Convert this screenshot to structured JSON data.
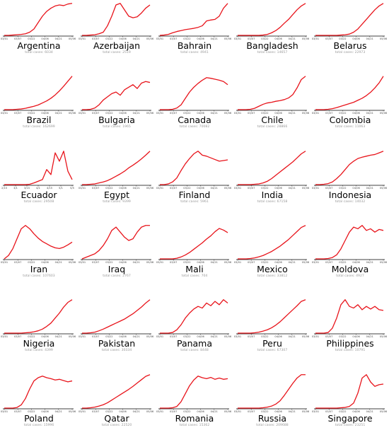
{
  "chart_data": [
    {
      "type": "line",
      "title": "Argentina",
      "subtitle": "total cases: 6034",
      "x_ticks": [
        "03/01",
        "03/07",
        "03/22",
        "04/06",
        "04/21",
        "05/06"
      ],
      "color": "#e8141b",
      "values": [
        0,
        0,
        0.01,
        0.02,
        0.03,
        0.05,
        0.1,
        0.2,
        0.4,
        0.6,
        0.75,
        0.85,
        0.92,
        0.95,
        0.93,
        0.98,
        1.0
      ],
      "ylim_frac": [
        0,
        1.15
      ]
    },
    {
      "type": "line",
      "title": "Azerbaijan",
      "subtitle": "total cases: 2519",
      "x_ticks": [
        "03/01",
        "03/07",
        "03/22",
        "04/06",
        "04/21",
        "05/06"
      ],
      "color": "#e8141b",
      "values": [
        0,
        0,
        0.01,
        0.02,
        0.05,
        0.1,
        0.3,
        0.6,
        0.95,
        1.0,
        0.8,
        0.6,
        0.55,
        0.58,
        0.7,
        0.85,
        0.95
      ],
      "ylim_frac": [
        0,
        1.15
      ]
    },
    {
      "type": "line",
      "title": "Bahrain",
      "subtitle": "total cases: 4941",
      "x_ticks": [
        "03/01",
        "03/07",
        "03/22",
        "04/06",
        "04/21",
        "05/06"
      ],
      "color": "#e8141b",
      "values": [
        0,
        0.01,
        0.03,
        0.08,
        0.12,
        0.15,
        0.18,
        0.2,
        0.22,
        0.25,
        0.3,
        0.45,
        0.48,
        0.5,
        0.6,
        0.85,
        1.0
      ],
      "ylim_frac": [
        0,
        1.15
      ]
    },
    {
      "type": "line",
      "title": "Bangladesh",
      "subtitle": "total cases: 14657",
      "x_ticks": [
        "03/01",
        "03/07",
        "03/22",
        "04/06",
        "04/21",
        "05/06"
      ],
      "color": "#e8141b",
      "values": [
        0,
        0,
        0,
        0,
        0,
        0,
        0.01,
        0.03,
        0.08,
        0.15,
        0.25,
        0.38,
        0.5,
        0.65,
        0.8,
        0.92,
        1.0
      ],
      "ylim_frac": [
        0,
        1.15
      ]
    },
    {
      "type": "line",
      "title": "Belarus",
      "subtitle": "total cases: 22973",
      "x_ticks": [
        "03/01",
        "03/07",
        "03/22",
        "04/06",
        "04/21",
        "05/06"
      ],
      "color": "#e8141b",
      "values": [
        0,
        0,
        0,
        0,
        0,
        0,
        0.01,
        0.02,
        0.04,
        0.1,
        0.2,
        0.35,
        0.5,
        0.65,
        0.8,
        0.92,
        1.0
      ],
      "ylim_frac": [
        0,
        1.15
      ]
    },
    {
      "type": "line",
      "title": "Brazil",
      "subtitle": "total cases: 162699",
      "x_ticks": [
        "03/01",
        "03/07",
        "03/22",
        "04/06",
        "04/21",
        "05/06"
      ],
      "color": "#e8141b",
      "values": [
        0,
        0,
        0,
        0.01,
        0.02,
        0.04,
        0.07,
        0.1,
        0.14,
        0.2,
        0.26,
        0.34,
        0.44,
        0.56,
        0.7,
        0.85,
        1.0
      ],
      "ylim_frac": [
        0,
        1.1
      ]
    },
    {
      "type": "line",
      "title": "Bulgaria",
      "subtitle": "total cases: 1965",
      "x_ticks": [
        "03/01",
        "03/07",
        "03/22",
        "04/06",
        "04/21",
        "05/06"
      ],
      "color": "#e8141b",
      "values": [
        0,
        0,
        0.01,
        0.05,
        0.15,
        0.3,
        0.4,
        0.5,
        0.55,
        0.45,
        0.62,
        0.7,
        0.78,
        0.66,
        0.83,
        0.88,
        0.85
      ],
      "ylim_frac": [
        0,
        1.15
      ]
    },
    {
      "type": "line",
      "title": "Canada",
      "subtitle": "total cases: 70082",
      "x_ticks": [
        "03/01",
        "03/07",
        "03/22",
        "04/06",
        "04/21",
        "05/06"
      ],
      "color": "#e8141b",
      "values": [
        0,
        0,
        0,
        0.01,
        0.05,
        0.15,
        0.35,
        0.55,
        0.7,
        0.82,
        0.92,
        1.0,
        0.98,
        0.95,
        0.92,
        0.88,
        0.78
      ],
      "ylim_frac": [
        0,
        1.15
      ]
    },
    {
      "type": "line",
      "title": "Chile",
      "subtitle": "total cases: 28866",
      "x_ticks": [
        "03/01",
        "03/07",
        "03/22",
        "04/06",
        "04/21",
        "05/06"
      ],
      "color": "#e8141b",
      "values": [
        0,
        0,
        0,
        0.01,
        0.04,
        0.1,
        0.16,
        0.2,
        0.22,
        0.25,
        0.27,
        0.3,
        0.35,
        0.45,
        0.65,
        0.9,
        1.0
      ],
      "ylim_frac": [
        0,
        1.1
      ]
    },
    {
      "type": "line",
      "title": "Colombia",
      "subtitle": "total cases: 11063",
      "x_ticks": [
        "03/01",
        "03/07",
        "03/22",
        "04/06",
        "04/21",
        "05/06"
      ],
      "color": "#e8141b",
      "values": [
        0,
        0,
        0,
        0.01,
        0.03,
        0.06,
        0.1,
        0.14,
        0.18,
        0.22,
        0.28,
        0.34,
        0.42,
        0.52,
        0.65,
        0.8,
        1.0
      ],
      "ylim_frac": [
        0,
        1.1
      ]
    },
    {
      "type": "line",
      "title": "Ecuador",
      "subtitle": "total cases: 29508",
      "x_ticks": [
        "2/15",
        "3/1",
        "3/15",
        "4/1",
        "4/15",
        "5/1",
        "5/5"
      ],
      "color": "#e8141b",
      "values": [
        0,
        0,
        0,
        0,
        0,
        0,
        0.01,
        0.05,
        0.1,
        0.15,
        0.45,
        0.3,
        0.95,
        0.7,
        1.0,
        0.4,
        0.15
      ],
      "ylim_frac": [
        0,
        1.1
      ]
    },
    {
      "type": "line",
      "title": "Egypt",
      "subtitle": "total cases: 9399",
      "x_ticks": [
        "03/01",
        "03/07",
        "03/22",
        "04/06",
        "04/21",
        "05/06"
      ],
      "color": "#e8141b",
      "values": [
        0,
        0,
        0.01,
        0.02,
        0.05,
        0.08,
        0.12,
        0.18,
        0.25,
        0.32,
        0.4,
        0.5,
        0.58,
        0.67,
        0.77,
        0.88,
        1.0
      ],
      "ylim_frac": [
        0,
        1.1
      ]
    },
    {
      "type": "line",
      "title": "Finland",
      "subtitle": "total cases: 5961",
      "x_ticks": [
        "03/01",
        "03/07",
        "03/22",
        "04/06",
        "04/21",
        "05/06"
      ],
      "color": "#e8141b",
      "values": [
        0,
        0,
        0.02,
        0.08,
        0.2,
        0.42,
        0.62,
        0.78,
        0.92,
        1.0,
        0.88,
        0.85,
        0.8,
        0.75,
        0.7,
        0.72,
        0.74
      ],
      "ylim_frac": [
        0,
        1.1
      ]
    },
    {
      "type": "line",
      "title": "India",
      "subtitle": "total cases: 67158",
      "x_ticks": [
        "03/01",
        "03/07",
        "03/22",
        "04/06",
        "04/21",
        "05/06"
      ],
      "color": "#e8141b",
      "values": [
        0,
        0,
        0,
        0,
        0.01,
        0.02,
        0.05,
        0.1,
        0.18,
        0.28,
        0.38,
        0.48,
        0.58,
        0.68,
        0.8,
        0.92,
        1.0
      ],
      "ylim_frac": [
        0,
        1.1
      ]
    },
    {
      "type": "line",
      "title": "Indonesia",
      "subtitle": "total cases: 14032",
      "x_ticks": [
        "03/01",
        "03/07",
        "03/22",
        "04/06",
        "04/21",
        "05/06"
      ],
      "color": "#e8141b",
      "values": [
        0,
        0,
        0.01,
        0.03,
        0.08,
        0.18,
        0.3,
        0.45,
        0.6,
        0.7,
        0.78,
        0.82,
        0.85,
        0.88,
        0.9,
        0.95,
        1.0
      ],
      "ylim_frac": [
        0,
        1.1
      ]
    },
    {
      "type": "line",
      "title": "Iran",
      "subtitle": "total cases: 107603",
      "x_ticks": [
        "03/01",
        "03/07",
        "03/22",
        "04/06",
        "04/21",
        "05/06"
      ],
      "color": "#e8141b",
      "values": [
        0,
        0.1,
        0.3,
        0.6,
        0.9,
        1.0,
        0.9,
        0.75,
        0.62,
        0.52,
        0.45,
        0.38,
        0.33,
        0.31,
        0.35,
        0.42,
        0.5
      ],
      "ylim_frac": [
        0,
        1.1
      ]
    },
    {
      "type": "line",
      "title": "Iraq",
      "subtitle": "total cases: 2767",
      "x_ticks": [
        "03/01",
        "03/07",
        "03/22",
        "04/06",
        "04/21",
        "05/06"
      ],
      "color": "#e8141b",
      "values": [
        0,
        0.05,
        0.1,
        0.15,
        0.25,
        0.4,
        0.6,
        0.85,
        0.95,
        0.8,
        0.65,
        0.55,
        0.6,
        0.8,
        0.95,
        1.0,
        1.0
      ],
      "ylim_frac": [
        0,
        1.1
      ]
    },
    {
      "type": "line",
      "title": "Mali",
      "subtitle": "total cases: 704",
      "x_ticks": [
        "03/01",
        "03/07",
        "03/22",
        "04/06",
        "04/21",
        "05/06"
      ],
      "color": "#e8141b",
      "values": [
        0,
        0,
        0,
        0,
        0.02,
        0.06,
        0.12,
        0.2,
        0.3,
        0.4,
        0.5,
        0.62,
        0.72,
        0.85,
        0.95,
        0.9,
        0.82
      ],
      "ylim_frac": [
        0,
        1.15
      ]
    },
    {
      "type": "line",
      "title": "Mexico",
      "subtitle": "total cases: 33812",
      "x_ticks": [
        "03/01",
        "03/07",
        "03/22",
        "04/06",
        "04/21",
        "05/06"
      ],
      "color": "#e8141b",
      "values": [
        0,
        0,
        0,
        0.01,
        0.03,
        0.06,
        0.1,
        0.16,
        0.22,
        0.3,
        0.38,
        0.48,
        0.58,
        0.7,
        0.82,
        0.94,
        1.0
      ],
      "ylim_frac": [
        0,
        1.1
      ]
    },
    {
      "type": "line",
      "title": "Moldova",
      "subtitle": "total cases: 4927",
      "x_ticks": [
        "03/01",
        "03/07",
        "03/22",
        "04/06",
        "04/21",
        "05/06"
      ],
      "color": "#e8141b",
      "values": [
        0,
        0,
        0,
        0.01,
        0.04,
        0.12,
        0.3,
        0.55,
        0.8,
        0.95,
        0.9,
        1.0,
        0.85,
        0.9,
        0.8,
        0.88,
        0.85
      ],
      "ylim_frac": [
        0,
        1.1
      ]
    },
    {
      "type": "line",
      "title": "Nigeria",
      "subtitle": "total cases: 4399",
      "x_ticks": [
        "03/01",
        "03/07",
        "03/22",
        "04/06",
        "04/21",
        "05/06"
      ],
      "color": "#e8141b",
      "values": [
        0,
        0,
        0,
        0,
        0,
        0.01,
        0.02,
        0.04,
        0.07,
        0.12,
        0.2,
        0.3,
        0.45,
        0.6,
        0.78,
        0.92,
        1.0
      ],
      "ylim_frac": [
        0,
        1.1
      ]
    },
    {
      "type": "line",
      "title": "Pakistan",
      "subtitle": "total cases: 30334",
      "x_ticks": [
        "03/01",
        "03/07",
        "03/22",
        "04/06",
        "04/21",
        "05/06"
      ],
      "color": "#e8141b",
      "values": [
        0,
        0,
        0.01,
        0.03,
        0.07,
        0.12,
        0.18,
        0.24,
        0.3,
        0.36,
        0.42,
        0.5,
        0.58,
        0.68,
        0.78,
        0.9,
        1.0
      ],
      "ylim_frac": [
        0,
        1.1
      ]
    },
    {
      "type": "line",
      "title": "Panama",
      "subtitle": "total cases: 8448",
      "x_ticks": [
        "03/01",
        "03/07",
        "03/22",
        "04/06",
        "04/21",
        "05/06"
      ],
      "color": "#e8141b",
      "values": [
        0,
        0,
        0,
        0.02,
        0.1,
        0.25,
        0.45,
        0.6,
        0.72,
        0.8,
        0.75,
        0.9,
        0.82,
        0.95,
        0.85,
        1.0,
        0.9
      ],
      "ylim_frac": [
        0,
        1.1
      ]
    },
    {
      "type": "line",
      "title": "Peru",
      "subtitle": "total cases: 67307",
      "x_ticks": [
        "03/01",
        "03/07",
        "03/22",
        "04/06",
        "04/21",
        "05/06"
      ],
      "color": "#e8141b",
      "values": [
        0,
        0,
        0,
        0,
        0.01,
        0.03,
        0.06,
        0.1,
        0.16,
        0.24,
        0.34,
        0.46,
        0.58,
        0.7,
        0.82,
        0.95,
        1.0
      ],
      "ylim_frac": [
        0,
        1.1
      ]
    },
    {
      "type": "line",
      "title": "Philippines",
      "subtitle": "total cases: 10791",
      "x_ticks": [
        "03/01",
        "03/07",
        "03/22",
        "04/06",
        "04/21",
        "05/06"
      ],
      "color": "#e8141b",
      "values": [
        0,
        0,
        0,
        0.02,
        0.15,
        0.45,
        0.85,
        1.0,
        0.8,
        0.75,
        0.85,
        0.7,
        0.8,
        0.72,
        0.8,
        0.7,
        0.68
      ],
      "ylim_frac": [
        0,
        1.1
      ]
    },
    {
      "type": "line",
      "title": "Poland",
      "subtitle": "total cases: 15996",
      "x_ticks": [
        "03/01",
        "03/07",
        "03/22",
        "04/06",
        "04/21",
        "05/06"
      ],
      "color": "#e8141b",
      "values": [
        0,
        0,
        0,
        0.02,
        0.1,
        0.3,
        0.6,
        0.85,
        0.95,
        1.0,
        0.95,
        0.92,
        0.88,
        0.9,
        0.86,
        0.82,
        0.85
      ],
      "ylim_frac": [
        0,
        1.15
      ]
    },
    {
      "type": "line",
      "title": "Qatar",
      "subtitle": "total cases: 22520",
      "x_ticks": [
        "03/01",
        "03/07",
        "03/22",
        "04/06",
        "04/21",
        "05/06"
      ],
      "color": "#e8141b",
      "values": [
        0,
        0,
        0.01,
        0.03,
        0.06,
        0.1,
        0.16,
        0.24,
        0.32,
        0.4,
        0.48,
        0.56,
        0.65,
        0.75,
        0.85,
        0.95,
        1.0
      ],
      "ylim_frac": [
        0,
        1.1
      ]
    },
    {
      "type": "line",
      "title": "Romania",
      "subtitle": "total cases: 15362",
      "x_ticks": [
        "03/01",
        "03/07",
        "03/22",
        "04/06",
        "04/21",
        "05/06"
      ],
      "color": "#e8141b",
      "values": [
        0,
        0,
        0,
        0.01,
        0.05,
        0.2,
        0.45,
        0.7,
        0.88,
        1.0,
        0.95,
        0.92,
        0.96,
        0.9,
        0.94,
        0.9,
        0.92
      ],
      "ylim_frac": [
        0,
        1.15
      ]
    },
    {
      "type": "line",
      "title": "Russia",
      "subtitle": "total cases: 209688",
      "x_ticks": [
        "03/01",
        "03/07",
        "03/22",
        "04/06",
        "04/21",
        "05/06"
      ],
      "color": "#e8141b",
      "values": [
        0,
        0,
        0,
        0,
        0,
        0,
        0.01,
        0.03,
        0.06,
        0.12,
        0.22,
        0.38,
        0.56,
        0.74,
        0.9,
        1.0,
        1.0
      ],
      "ylim_frac": [
        0,
        1.1
      ]
    },
    {
      "type": "line",
      "title": "Singapore",
      "subtitle": "total cases: 23251",
      "x_ticks": [
        "03/01",
        "03/07",
        "03/22",
        "04/06",
        "04/21",
        "05/06"
      ],
      "color": "#e8141b",
      "values": [
        0,
        0,
        0,
        0,
        0,
        0,
        0.01,
        0.02,
        0.05,
        0.15,
        0.45,
        0.9,
        1.0,
        0.78,
        0.65,
        0.7,
        0.72
      ],
      "ylim_frac": [
        0,
        1.1
      ]
    }
  ]
}
